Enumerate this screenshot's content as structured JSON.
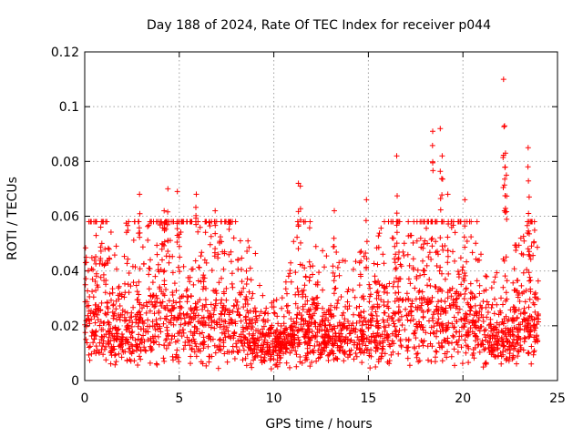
{
  "chart_data": {
    "type": "scatter",
    "title": "Day 188 of 2024, Rate Of TEC Index for receiver p044",
    "xlabel": "GPS time / hours",
    "ylabel": "ROTI / TECUs",
    "xlim": [
      0,
      25
    ],
    "ylim": [
      0,
      0.12
    ],
    "xticks": [
      0,
      5,
      10,
      15,
      20,
      25
    ],
    "yticks": [
      0,
      0.02,
      0.04,
      0.06,
      0.08,
      0.1,
      0.12
    ],
    "xtick_labels": [
      "0",
      "5",
      "10",
      "15",
      "20",
      "25"
    ],
    "ytick_labels": [
      "0",
      "0.02",
      "0.04",
      "0.06",
      "0.08",
      "0.1",
      "0.12"
    ],
    "grid": true,
    "marker": "+",
    "series": [
      {
        "name": "ROTI",
        "color": "#ff0000",
        "data_range_hours": [
          0,
          24
        ],
        "peaks": [
          [
            0.6,
            0.053
          ],
          [
            0.85,
            0.056
          ],
          [
            2.9,
            0.068
          ],
          [
            4.2,
            0.062
          ],
          [
            4.4,
            0.07
          ],
          [
            4.9,
            0.069
          ],
          [
            5.9,
            0.068
          ],
          [
            6.9,
            0.062
          ],
          [
            11.3,
            0.072
          ],
          [
            11.4,
            0.071
          ],
          [
            13.2,
            0.062
          ],
          [
            14.9,
            0.066
          ],
          [
            16.5,
            0.082
          ],
          [
            18.4,
            0.091
          ],
          [
            18.8,
            0.092
          ],
          [
            18.9,
            0.082
          ],
          [
            19.2,
            0.068
          ],
          [
            20.1,
            0.066
          ],
          [
            22.15,
            0.11
          ],
          [
            22.2,
            0.093
          ],
          [
            22.25,
            0.083
          ],
          [
            22.3,
            0.075
          ],
          [
            23.45,
            0.085
          ],
          [
            23.5,
            0.067
          ]
        ]
      }
    ]
  }
}
